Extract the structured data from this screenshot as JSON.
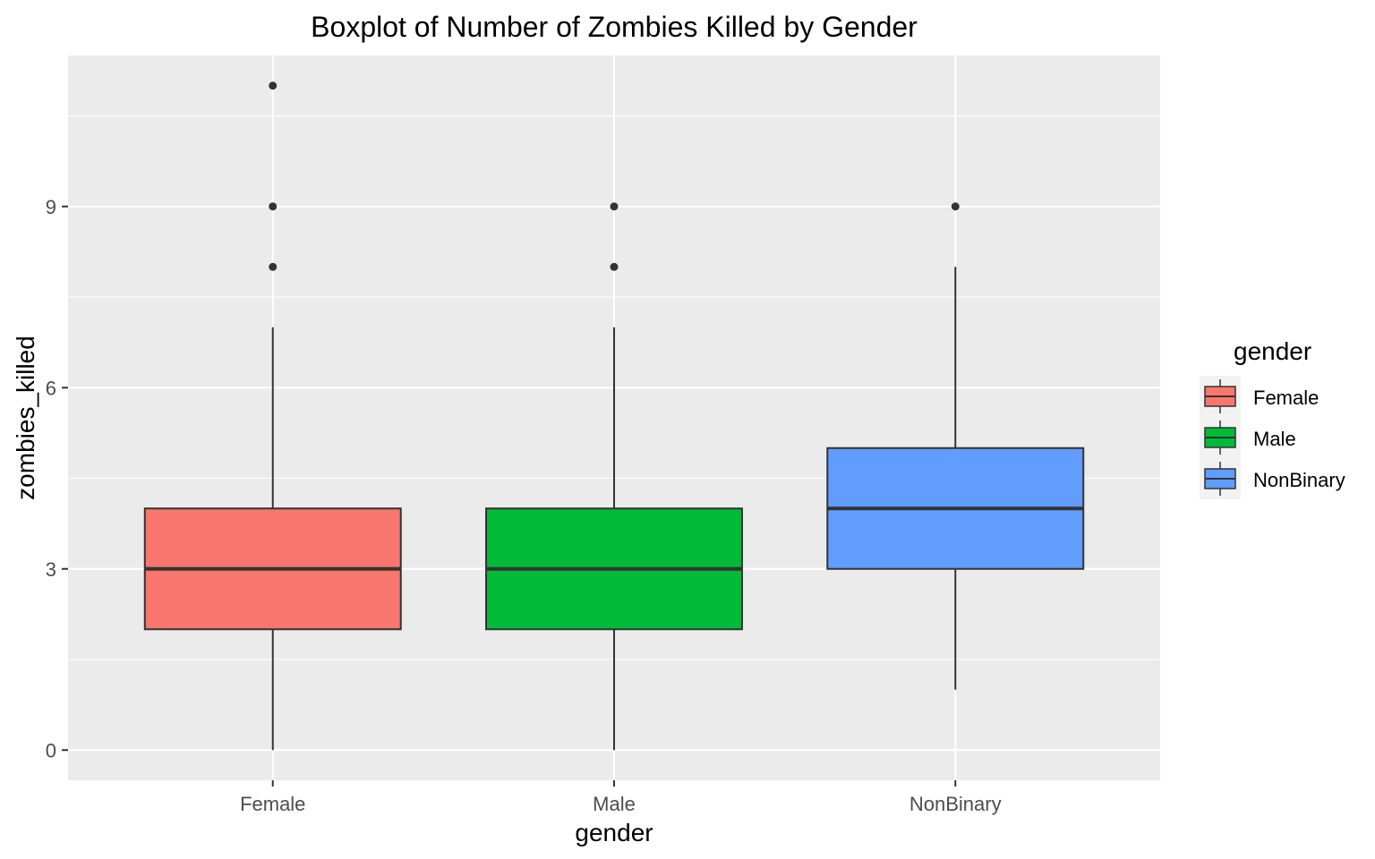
{
  "chart_data": {
    "type": "boxplot",
    "title": "Boxplot of Number of Zombies Killed by Gender",
    "xlabel": "gender",
    "ylabel": "zombies_killed",
    "categories": [
      "Female",
      "Male",
      "NonBinary"
    ],
    "ylim": [
      -0.5,
      11.5
    ],
    "yticks": [
      0,
      3,
      6,
      9
    ],
    "grid": true,
    "legend": {
      "title": "gender",
      "position": "right"
    },
    "colors": {
      "Female": "#F8766D",
      "Male": "#00BA38",
      "NonBinary": "#619CFF"
    },
    "series": [
      {
        "name": "Female",
        "min": 0,
        "q1": 2,
        "median": 3,
        "q3": 4,
        "max": 7,
        "outliers": [
          8,
          9,
          11
        ]
      },
      {
        "name": "Male",
        "min": 0,
        "q1": 2,
        "median": 3,
        "q3": 4,
        "max": 7,
        "outliers": [
          8,
          9
        ]
      },
      {
        "name": "NonBinary",
        "min": 1,
        "q1": 3,
        "median": 4,
        "q3": 5,
        "max": 8,
        "outliers": [
          9
        ]
      }
    ]
  }
}
